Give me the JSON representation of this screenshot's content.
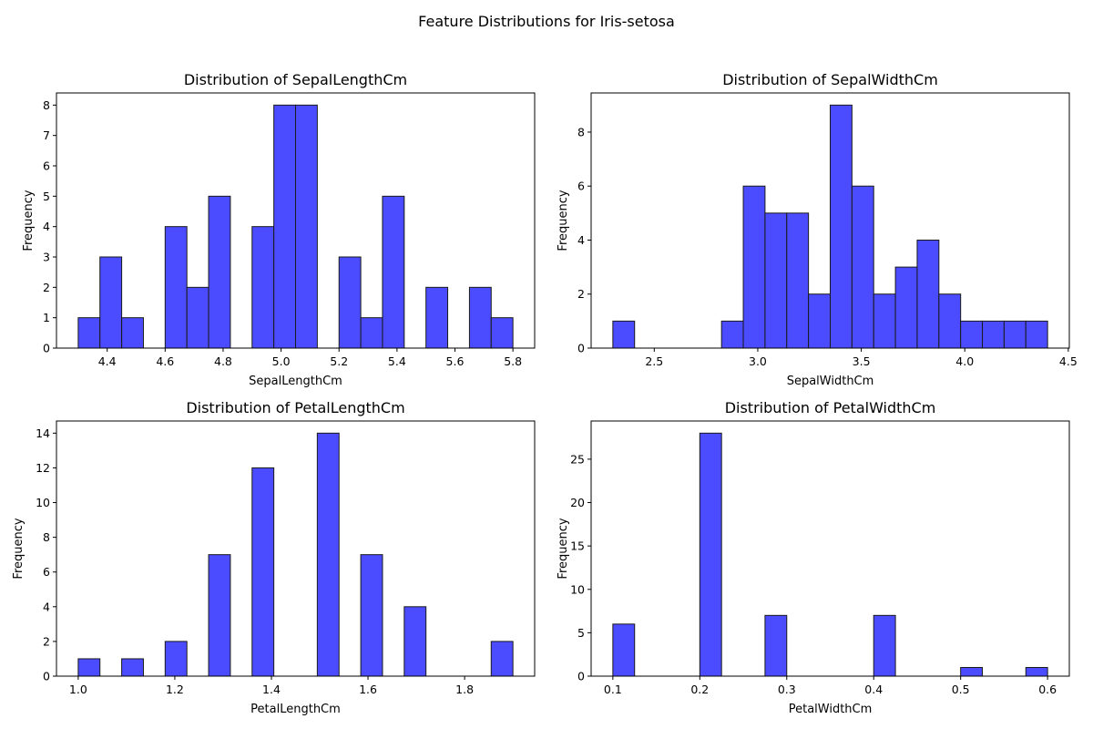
{
  "figure": {
    "suptitle": "Feature Distributions for Iris-setosa"
  },
  "chart_data": [
    {
      "type": "bar",
      "title": "Distribution of SepalLengthCm",
      "xlabel": "SepalLengthCm",
      "ylabel": "Frequency",
      "bar_color": "#4b4bff",
      "edge_color": "#1a1a1a",
      "bin_start": 4.3,
      "bin_width": 0.075,
      "values": [
        1,
        3,
        1,
        0,
        4,
        2,
        5,
        0,
        4,
        8,
        8,
        0,
        3,
        1,
        5,
        0,
        2,
        0,
        2,
        1
      ],
      "xlim": [
        4.225,
        4.875
      ],
      "ylim": [
        0,
        8.4
      ],
      "xticks": [
        4.4,
        4.6,
        4.8,
        5.0,
        5.2,
        5.4,
        5.6,
        5.8
      ],
      "xtick_labels": [
        "4.4",
        "4.6",
        "4.8",
        "5.0",
        "5.2",
        "5.4",
        "5.6",
        "5.8"
      ],
      "yticks": [
        0,
        1,
        2,
        3,
        4,
        5,
        6,
        7,
        8
      ],
      "ytick_labels": [
        "0",
        "1",
        "2",
        "3",
        "4",
        "5",
        "6",
        "7",
        "8"
      ],
      "grid": false
    },
    {
      "type": "bar",
      "title": "Distribution of SepalWidthCm",
      "xlabel": "SepalWidthCm",
      "ylabel": "Frequency",
      "bar_color": "#4b4bff",
      "edge_color": "#1a1a1a",
      "bin_start": 2.3,
      "bin_width": 0.105,
      "values": [
        1,
        0,
        0,
        0,
        0,
        1,
        6,
        5,
        5,
        2,
        9,
        6,
        2,
        3,
        4,
        2,
        1,
        1,
        1,
        1
      ],
      "xlim": [
        2.195,
        4.505
      ],
      "ylim": [
        0,
        9.45
      ],
      "xticks": [
        2.5,
        3.0,
        3.5,
        4.0,
        4.5
      ],
      "xtick_labels": [
        "2.5",
        "3.0",
        "3.5",
        "4.0",
        "4.5"
      ],
      "yticks": [
        0,
        2,
        4,
        6,
        8
      ],
      "ytick_labels": [
        "0",
        "2",
        "4",
        "6",
        "8"
      ],
      "grid": false
    },
    {
      "type": "bar",
      "title": "Distribution of PetalLengthCm",
      "xlabel": "PetalLengthCm",
      "ylabel": "Frequency",
      "bar_color": "#4b4bff",
      "edge_color": "#1a1a1a",
      "bin_start": 1.0,
      "bin_width": 0.045,
      "values": [
        1,
        0,
        1,
        0,
        2,
        0,
        7,
        0,
        12,
        0,
        0,
        14,
        0,
        7,
        0,
        4,
        0,
        0,
        0,
        2
      ],
      "xlim": [
        0.955,
        1.945
      ],
      "ylim": [
        0,
        14.7
      ],
      "xticks": [
        1.0,
        1.2,
        1.4,
        1.6,
        1.8
      ],
      "xtick_labels": [
        "1.0",
        "1.2",
        "1.4",
        "1.6",
        "1.8"
      ],
      "yticks": [
        0,
        2,
        4,
        6,
        8,
        10,
        12,
        14
      ],
      "ytick_labels": [
        "0",
        "2",
        "4",
        "6",
        "8",
        "10",
        "12",
        "14"
      ],
      "grid": false
    },
    {
      "type": "bar",
      "title": "Distribution of PetalWidthCm",
      "xlabel": "PetalWidthCm",
      "ylabel": "Frequency",
      "bar_color": "#4b4bff",
      "edge_color": "#1a1a1a",
      "bin_start": 0.1,
      "bin_width": 0.025,
      "values": [
        6,
        0,
        0,
        0,
        28,
        0,
        0,
        7,
        0,
        0,
        0,
        0,
        7,
        0,
        0,
        0,
        1,
        0,
        0,
        1
      ],
      "xlim": [
        0.075,
        0.625
      ],
      "ylim": [
        0,
        29.4
      ],
      "xticks": [
        0.1,
        0.2,
        0.3,
        0.4,
        0.5,
        0.6
      ],
      "xtick_labels": [
        "0.1",
        "0.2",
        "0.3",
        "0.4",
        "0.5",
        "0.6"
      ],
      "yticks": [
        0,
        5,
        10,
        15,
        20,
        25
      ],
      "ytick_labels": [
        "0",
        "5",
        "10",
        "15",
        "20",
        "25"
      ],
      "grid": false
    }
  ]
}
